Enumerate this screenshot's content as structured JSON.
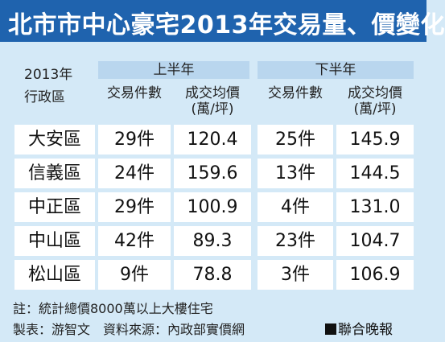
{
  "title": "北市市中心豪宅2013年交易量、價變化",
  "header": {
    "year": "2013年",
    "district": "行政區",
    "first_half": "上半年",
    "second_half": "下半年",
    "count_label": "交易件數",
    "price_label": "成交均價",
    "price_unit": "(萬/坪)"
  },
  "rows": [
    {
      "district": "大安區",
      "h1_count": "29件",
      "h1_price": "120.4",
      "h2_count": "25件",
      "h2_price": "145.9"
    },
    {
      "district": "信義區",
      "h1_count": "24件",
      "h1_price": "159.6",
      "h2_count": "13件",
      "h2_price": "144.5"
    },
    {
      "district": "中正區",
      "h1_count": "29件",
      "h1_price": "100.9",
      "h2_count": "4件",
      "h2_price": "131.0"
    },
    {
      "district": "中山區",
      "h1_count": "42件",
      "h1_price": "89.3",
      "h2_count": "23件",
      "h2_price": "104.7"
    },
    {
      "district": "松山區",
      "h1_count": "9件",
      "h1_price": "78.8",
      "h2_count": "3件",
      "h2_price": "106.9"
    }
  ],
  "footer": {
    "note": "註：統計總價8000萬以上大樓住宅",
    "credit": "製表：游智文　資料來源：內政部實價網",
    "source": "聯合晚報"
  },
  "colors": {
    "title_bg": "#1f63ae",
    "page_bg": "#d4e9f7",
    "band_bg": "#b9d6ee",
    "cell_bg": "#ffffff"
  }
}
